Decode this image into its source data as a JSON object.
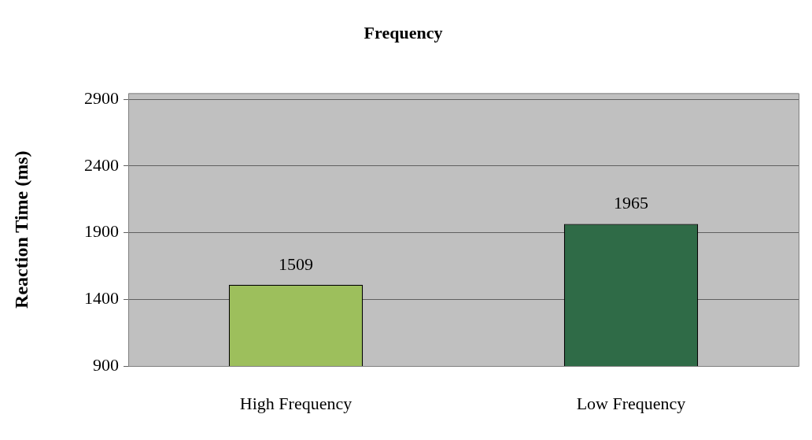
{
  "chart_data": {
    "type": "bar",
    "title": "Frequency",
    "ylabel": "Reaction Time (ms)",
    "categories": [
      "High Frequency",
      "Low Frequency"
    ],
    "values": [
      1509,
      1965
    ],
    "colors": [
      "#9dbf5c",
      "#2f6b47"
    ],
    "ylim": [
      900,
      2945
    ],
    "yticks": [
      900,
      1400,
      1900,
      2400,
      2900
    ],
    "grid": "y",
    "data_labels": true
  }
}
